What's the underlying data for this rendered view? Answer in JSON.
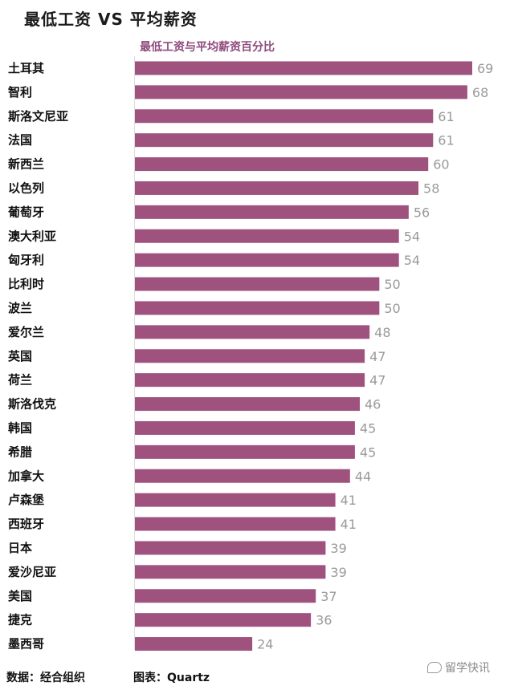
{
  "header": {
    "title": "最低工资 VS 平均薪资"
  },
  "chart_data": {
    "type": "bar",
    "orientation": "horizontal",
    "title": "最低工资与平均薪资百分比",
    "xlim": [
      0,
      72
    ],
    "grid": false,
    "categories": [
      "土耳其",
      "智利",
      "斯洛文尼亚",
      "法国",
      "新西兰",
      "以色列",
      "葡萄牙",
      "澳大利亚",
      "匈牙利",
      "比利时",
      "波兰",
      "爱尔兰",
      "英国",
      "荷兰",
      "斯洛伐克",
      "韩国",
      "希腊",
      "加拿大",
      "卢森堡",
      "西班牙",
      "日本",
      "爱沙尼亚",
      "美国",
      "捷克",
      "墨西哥"
    ],
    "values": [
      69,
      68,
      61,
      61,
      60,
      58,
      56,
      54,
      54,
      50,
      50,
      48,
      47,
      47,
      46,
      45,
      45,
      44,
      41,
      41,
      39,
      39,
      37,
      36,
      24
    ],
    "bar_color": "#a0527f"
  },
  "footer": {
    "source": "数据：经合组织",
    "chart_by": "图表：Quartz",
    "watermark": "留学快讯"
  },
  "icons": {
    "watermark": "chat-bubble-icon"
  }
}
